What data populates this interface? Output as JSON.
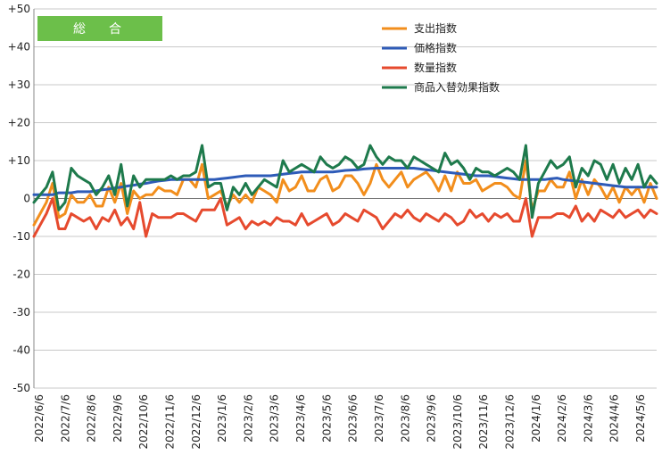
{
  "chart_data": {
    "type": "line",
    "badge_label": "総　合",
    "ylim": [
      -50,
      50
    ],
    "y_ticks": [
      "+50",
      "+40",
      "+30",
      "+20",
      "+10",
      "0",
      "-10",
      "-20",
      "-30",
      "-40",
      "-50"
    ],
    "y_tick_values": [
      50,
      40,
      30,
      20,
      10,
      0,
      -10,
      -20,
      -30,
      -40,
      -50
    ],
    "grid": "horizontal",
    "legend_position": "top-right",
    "x_tick_labels": [
      "2022/6/6",
      "2022/7/6",
      "2022/8/6",
      "2022/9/6",
      "2022/10/6",
      "2022/11/6",
      "2022/12/6",
      "2023/1/6",
      "2023/2/6",
      "2023/3/6",
      "2023/4/6",
      "2023/5/6",
      "2023/6/6",
      "2023/7/6",
      "2023/8/6",
      "2023/9/6",
      "2023/10/6",
      "2023/11/6",
      "2023/12/6",
      "2024/1/6",
      "2024/2/6",
      "2024/3/6",
      "2024/4/6",
      "2024/5/6"
    ],
    "series": [
      {
        "name": "支出指数",
        "color": "#f28e1c",
        "values": [
          -7,
          -4,
          -1,
          4,
          -5,
          -4,
          1,
          -1,
          -1,
          1,
          -2,
          -2,
          3,
          -1,
          4,
          -4,
          2,
          0,
          1,
          1,
          3,
          2,
          2,
          1,
          5,
          5,
          3,
          9,
          0,
          1,
          2,
          -2,
          1,
          -1,
          1,
          -1,
          3,
          2,
          1,
          -1,
          5,
          2,
          3,
          6,
          2,
          2,
          5,
          6,
          2,
          3,
          6,
          6,
          4,
          1,
          4,
          9,
          5,
          3,
          5,
          7,
          3,
          5,
          6,
          7,
          5,
          2,
          6,
          2,
          7,
          4,
          4,
          5,
          2,
          3,
          4,
          4,
          3,
          1,
          0,
          10,
          -3,
          2,
          2,
          5,
          3,
          3,
          7,
          0,
          5,
          1,
          5,
          3,
          0,
          3,
          -1,
          3,
          1,
          3,
          -1,
          4,
          0
        ]
      },
      {
        "name": "価格指数",
        "color": "#2e5bb8",
        "values": [
          1,
          1,
          1,
          1,
          1.5,
          1.5,
          1.5,
          1.8,
          1.8,
          1.8,
          2,
          2.3,
          2.5,
          2.8,
          3,
          3.3,
          3.5,
          3.8,
          4,
          4.3,
          4.6,
          4.8,
          5,
          5,
          5,
          5,
          5,
          5,
          5,
          5,
          5.2,
          5.4,
          5.6,
          5.8,
          6,
          6,
          6,
          6,
          6,
          6.2,
          6.4,
          6.6,
          6.8,
          7,
          7,
          7,
          7,
          7,
          7,
          7.2,
          7.4,
          7.5,
          7.6,
          7.8,
          7.9,
          8,
          8,
          8,
          8,
          8,
          8,
          8,
          7.8,
          7.6,
          7.4,
          7.2,
          7,
          6.8,
          6.6,
          6.4,
          6.2,
          6,
          6,
          6,
          5.8,
          5.6,
          5.4,
          5.2,
          5,
          5,
          5,
          5,
          5,
          5.2,
          5.4,
          5,
          4.8,
          4.6,
          4.4,
          4.2,
          4,
          3.8,
          3.6,
          3.4,
          3.2,
          3,
          3,
          3,
          3,
          3,
          3
        ]
      },
      {
        "name": "数量指数",
        "color": "#e64a2e",
        "values": [
          -10,
          -7,
          -4,
          0,
          -8,
          -8,
          -4,
          -5,
          -6,
          -5,
          -8,
          -5,
          -6,
          -3,
          -7,
          -5,
          -8,
          -1,
          -10,
          -4,
          -5,
          -5,
          -5,
          -4,
          -4,
          -5,
          -6,
          -3,
          -3,
          -3,
          0,
          -7,
          -6,
          -5,
          -8,
          -6,
          -7,
          -6,
          -7,
          -5,
          -6,
          -6,
          -7,
          -4,
          -7,
          -6,
          -5,
          -4,
          -7,
          -6,
          -4,
          -5,
          -6,
          -3,
          -4,
          -5,
          -8,
          -6,
          -4,
          -5,
          -3,
          -5,
          -6,
          -4,
          -5,
          -6,
          -4,
          -5,
          -7,
          -6,
          -3,
          -5,
          -4,
          -6,
          -4,
          -5,
          -4,
          -6,
          -6,
          0,
          -10,
          -5,
          -5,
          -5,
          -4,
          -4,
          -5,
          -2,
          -6,
          -4,
          -6,
          -3,
          -4,
          -5,
          -3,
          -5,
          -4,
          -3,
          -5,
          -3,
          -4
        ]
      },
      {
        "name": "商品入替効果指数",
        "color": "#1e7a4c",
        "values": [
          -1,
          1,
          3,
          7,
          -3,
          -1,
          8,
          6,
          5,
          4,
          1,
          3,
          6,
          1,
          9,
          -2,
          6,
          3,
          5,
          5,
          5,
          5,
          6,
          5,
          6,
          6,
          7,
          14,
          3,
          4,
          4,
          -3,
          3,
          1,
          4,
          1,
          3,
          5,
          4,
          3,
          10,
          7,
          8,
          9,
          8,
          7,
          11,
          9,
          8,
          9,
          11,
          10,
          8,
          9,
          14,
          11,
          9,
          11,
          10,
          10,
          8,
          11,
          10,
          9,
          8,
          7,
          12,
          9,
          10,
          8,
          5,
          8,
          7,
          7,
          6,
          7,
          8,
          7,
          5,
          14,
          -5,
          4,
          7,
          10,
          8,
          9,
          11,
          3,
          8,
          6,
          10,
          9,
          5,
          9,
          4,
          8,
          5,
          9,
          3,
          6,
          4
        ]
      }
    ]
  }
}
